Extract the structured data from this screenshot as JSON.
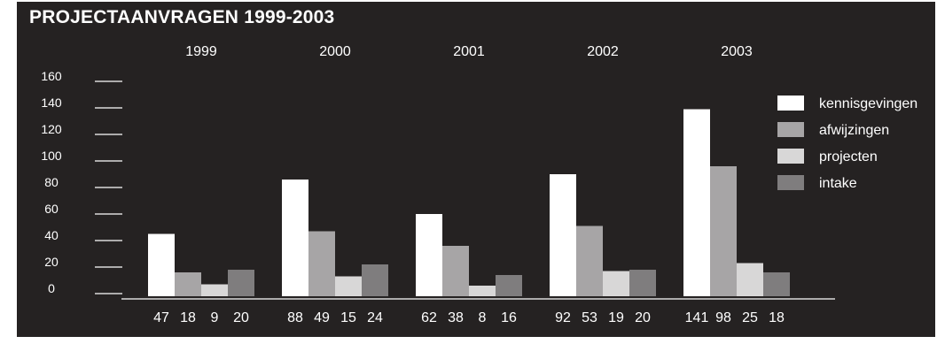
{
  "chart_data": {
    "type": "bar",
    "title": "PROJECTAANVRAGEN 1999-2003",
    "xlabel": "",
    "ylabel": "",
    "ylim": [
      0,
      160
    ],
    "yticks": [
      "0",
      "20",
      "40",
      "60",
      "80",
      "100",
      "120",
      "140",
      "160"
    ],
    "categories": [
      "1999",
      "2000",
      "2001",
      "2002",
      "2003"
    ],
    "series": [
      {
        "name": "kennisgevingen",
        "color": "#ffffff",
        "values": [
          47,
          88,
          62,
          92,
          141
        ]
      },
      {
        "name": "afwijzingen",
        "color": "#a7a5a6",
        "values": [
          18,
          49,
          38,
          53,
          98
        ]
      },
      {
        "name": "projecten",
        "color": "#d8d7d7",
        "values": [
          9,
          15,
          8,
          19,
          25
        ]
      },
      {
        "name": "intake",
        "color": "#7f7d7e",
        "values": [
          20,
          24,
          16,
          20,
          18
        ]
      }
    ],
    "grid": false,
    "legend": "right"
  },
  "colors": {
    "background": "#252222",
    "text": "#ffffff"
  }
}
